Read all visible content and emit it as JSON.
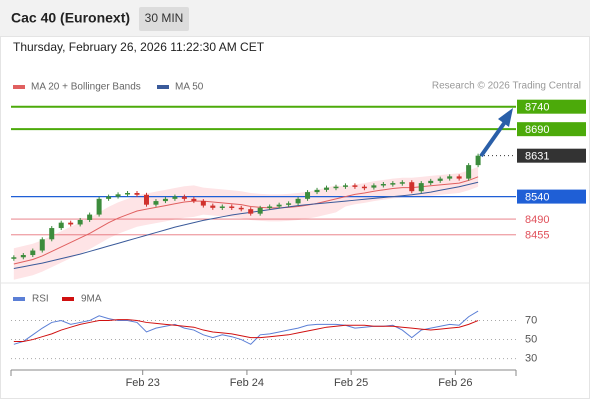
{
  "header": {
    "title": "Cac 40 (Euronext)",
    "interval": "30 MIN",
    "datetime": "Thursday, February 26, 2026 11:22:30 AM CET",
    "credit": "Research © 2026 Trading Central"
  },
  "chart_data": [
    {
      "type": "candlestick",
      "legend": [
        "MA 20 + Bollinger Bands",
        "MA 50"
      ],
      "xlim": [
        -0.3,
        53
      ],
      "ylim": [
        8350,
        8766
      ],
      "xticks": [
        {
          "value": 13.6,
          "label": "Feb 23"
        },
        {
          "value": 24.6,
          "label": "Feb 24"
        },
        {
          "value": 35.6,
          "label": "Feb 25"
        },
        {
          "value": 46.6,
          "label": "Feb 26"
        }
      ],
      "close": [
        8405,
        8410,
        8420,
        8445,
        8470,
        8482,
        8478,
        8488,
        8500,
        8535,
        8540,
        8545,
        8548,
        8544,
        8522,
        8530,
        8535,
        8540,
        8535,
        8530,
        8520,
        8515,
        8518,
        8515,
        8512,
        8502,
        8515,
        8518,
        8522,
        8525,
        8535,
        8550,
        8555,
        8560,
        8562,
        8565,
        8562,
        8560,
        8565,
        8568,
        8570,
        8572,
        8552,
        8570,
        8575,
        8580,
        8585,
        8580,
        8610,
        8631
      ],
      "up_color": "#3c8c3c",
      "down_color": "#d0312d",
      "series": [
        {
          "name": "MA 20 + Bollinger Bands",
          "color": "#e06060",
          "values": [
            8390,
            8395,
            8400,
            8408,
            8418,
            8428,
            8438,
            8448,
            8458,
            8470,
            8482,
            8492,
            8500,
            8508,
            8512,
            8516,
            8520,
            8524,
            8528,
            8530,
            8530,
            8528,
            8526,
            8524,
            8522,
            8518,
            8516,
            8515,
            8515,
            8516,
            8518,
            8521,
            8525,
            8530,
            8535,
            8540,
            8545,
            8548,
            8552,
            8555,
            8558,
            8560,
            8560,
            8562,
            8564,
            8566,
            8568,
            8570,
            8576,
            8584
          ]
        },
        {
          "name": "MA 50",
          "color": "#3a5a9a",
          "values": [
            8380,
            8384,
            8388,
            8392,
            8397,
            8402,
            8407,
            8412,
            8418,
            8424,
            8430,
            8436,
            8442,
            8448,
            8454,
            8460,
            8466,
            8472,
            8477,
            8482,
            8487,
            8491,
            8495,
            8499,
            8502,
            8505,
            8508,
            8511,
            8514,
            8517,
            8520,
            8522,
            8524,
            8526,
            8528,
            8530,
            8532,
            8534,
            8536,
            8538,
            8540,
            8542,
            8544,
            8547,
            8550,
            8554,
            8558,
            8562,
            8567,
            8572
          ]
        }
      ],
      "band_color": "#fdd8dc",
      "band_upper": [
        8425,
        8430,
        8435,
        8443,
        8453,
        8463,
        8473,
        8483,
        8493,
        8505,
        8517,
        8527,
        8535,
        8543,
        8547,
        8551,
        8555,
        8559,
        8563,
        8565,
        8560,
        8558,
        8556,
        8554,
        8552,
        8548,
        8546,
        8545,
        8545,
        8546,
        8548,
        8551,
        8555,
        8560,
        8565,
        8562,
        8567,
        8570,
        8574,
        8577,
        8580,
        8582,
        8582,
        8584,
        8586,
        8588,
        8590,
        8592,
        8598,
        8606
      ],
      "band_lower": [
        8355,
        8360,
        8365,
        8373,
        8383,
        8393,
        8403,
        8413,
        8423,
        8435,
        8447,
        8457,
        8465,
        8473,
        8477,
        8481,
        8485,
        8489,
        8493,
        8495,
        8500,
        8498,
        8496,
        8494,
        8492,
        8488,
        8486,
        8485,
        8485,
        8486,
        8488,
        8491,
        8495,
        8500,
        8505,
        8518,
        8523,
        8526,
        8530,
        8533,
        8536,
        8538,
        8538,
        8540,
        8542,
        8544,
        8546,
        8548,
        8554,
        8562
      ],
      "levels": [
        {
          "value": 8740,
          "color": "#4caa0a",
          "style": "solid",
          "tag": "box"
        },
        {
          "value": 8690,
          "color": "#4caa0a",
          "style": "solid",
          "tag": "box"
        },
        {
          "value": 8631,
          "color": "#333333",
          "style": "dotted",
          "tag": "box"
        },
        {
          "value": 8540,
          "color": "#1f5fd6",
          "style": "solid",
          "tag": "box"
        },
        {
          "value": 8490,
          "color": "#e0505a",
          "style": "thin",
          "tag": "text"
        },
        {
          "value": 8455,
          "color": "#e0505a",
          "style": "thin",
          "tag": "text"
        }
      ]
    },
    {
      "type": "line",
      "xlim": [
        -0.3,
        53
      ],
      "ylim": [
        18,
        100
      ],
      "yticks": [
        30,
        50,
        70
      ],
      "series": [
        {
          "name": "RSI",
          "color": "#5b7fd6",
          "values": [
            45,
            48,
            55,
            62,
            68,
            70,
            66,
            68,
            70,
            75,
            72,
            70,
            70,
            68,
            58,
            62,
            64,
            66,
            62,
            60,
            55,
            52,
            55,
            53,
            50,
            45,
            55,
            56,
            58,
            60,
            62,
            65,
            66,
            66,
            66,
            65,
            62,
            63,
            64,
            64,
            65,
            60,
            52,
            60,
            62,
            64,
            66,
            65,
            74,
            80
          ]
        },
        {
          "name": "9MA",
          "color": "#d01010",
          "values": [
            48,
            48,
            50,
            53,
            56,
            60,
            63,
            66,
            68,
            70,
            70,
            71,
            71,
            70,
            68,
            67,
            66,
            65,
            64,
            63,
            60,
            58,
            57,
            56,
            54,
            52,
            52,
            53,
            54,
            55,
            57,
            59,
            61,
            63,
            64,
            65,
            65,
            65,
            64,
            64,
            64,
            63,
            62,
            61,
            60,
            61,
            62,
            63,
            66,
            70
          ]
        }
      ]
    }
  ]
}
